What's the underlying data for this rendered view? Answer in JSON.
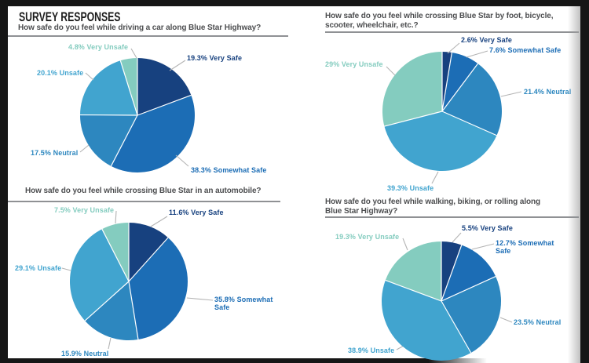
{
  "page_title": "SURVEY RESPONSES",
  "colors": {
    "very_safe": "#17417f",
    "somewhat_safe": "#1c6db5",
    "neutral": "#2d87bf",
    "unsafe": "#41a4cf",
    "very_unsafe": "#84ccbf"
  },
  "chart_data": [
    {
      "type": "pie",
      "title": "How safe do you feel while driving a car along Blue Star Highway?",
      "title_lines": [
        "How safe do you feel while driving a car along Blue Star Highway?"
      ],
      "categories": [
        "Very Safe",
        "Somewhat Safe",
        "Neutral",
        "Unsafe",
        "Very Unsafe"
      ],
      "values": [
        19.3,
        38.3,
        17.5,
        20.1,
        4.8
      ],
      "labels": [
        "19.3% Very Safe",
        "38.3% Somewhat Safe",
        "17.5% Neutral",
        "20.1% Unsafe",
        "4.8% Very Unsafe"
      ],
      "color_keys": [
        "very_safe",
        "somewhat_safe",
        "neutral",
        "unsafe",
        "very_unsafe"
      ],
      "legend_position": "callout-labels",
      "start_angle_deg": 0,
      "direction": "clockwise"
    },
    {
      "type": "pie",
      "title": "How safe do you feel while crossing Blue Star by foot, bicycle, scooter, wheelchair, etc.?",
      "title_lines": [
        "How safe do you feel while crossing Blue Star by foot, bicycle,",
        "scooter, wheelchair, etc.?"
      ],
      "categories": [
        "Very Safe",
        "Somewhat Safe",
        "Neutral",
        "Unsafe",
        "Very Unsafe"
      ],
      "values": [
        2.6,
        7.6,
        21.4,
        39.3,
        29
      ],
      "labels": [
        "2.6% Very Safe",
        "7.6% Somewhat Safe",
        "21.4% Neutral",
        "39.3% Unsafe",
        "29% Very Unsafe"
      ],
      "color_keys": [
        "very_safe",
        "somewhat_safe",
        "neutral",
        "unsafe",
        "very_unsafe"
      ],
      "legend_position": "callout-labels",
      "start_angle_deg": 0,
      "direction": "clockwise"
    },
    {
      "type": "pie",
      "title": "How safe do you feel while crossing Blue Star in an automobile?",
      "title_lines": [
        "How safe do you feel while crossing Blue Star in an automobile?"
      ],
      "categories": [
        "Very Safe",
        "Somewhat Safe",
        "Neutral",
        "Unsafe",
        "Very Unsafe"
      ],
      "values": [
        11.6,
        35.8,
        15.9,
        29.1,
        7.5
      ],
      "labels": [
        "11.6% Very Safe",
        "35.8% Somewhat Safe",
        "15.9% Neutral",
        "29.1% Unsafe",
        "7.5% Very Unsafe"
      ],
      "color_keys": [
        "very_safe",
        "somewhat_safe",
        "neutral",
        "unsafe",
        "very_unsafe"
      ],
      "legend_position": "callout-labels",
      "start_angle_deg": 0,
      "direction": "clockwise"
    },
    {
      "type": "pie",
      "title": "How safe do you feel while walking, biking, or rolling along Blue Star Highway?",
      "title_lines": [
        "How safe do you feel while walking, biking, or rolling along",
        "Blue Star Highway?"
      ],
      "categories": [
        "Very Safe",
        "Somewhat Safe",
        "Neutral",
        "Unsafe",
        "Very Unsafe"
      ],
      "values": [
        5.5,
        12.7,
        23.5,
        38.9,
        19.3
      ],
      "labels": [
        "5.5% Very Safe",
        "12.7% Somewhat Safe",
        "23.5% Neutral",
        "38.9% Unsafe",
        "19.3% Very Unsafe"
      ],
      "color_keys": [
        "very_safe",
        "somewhat_safe",
        "neutral",
        "unsafe",
        "very_unsafe"
      ],
      "legend_position": "callout-labels",
      "start_angle_deg": 0,
      "direction": "clockwise"
    }
  ]
}
